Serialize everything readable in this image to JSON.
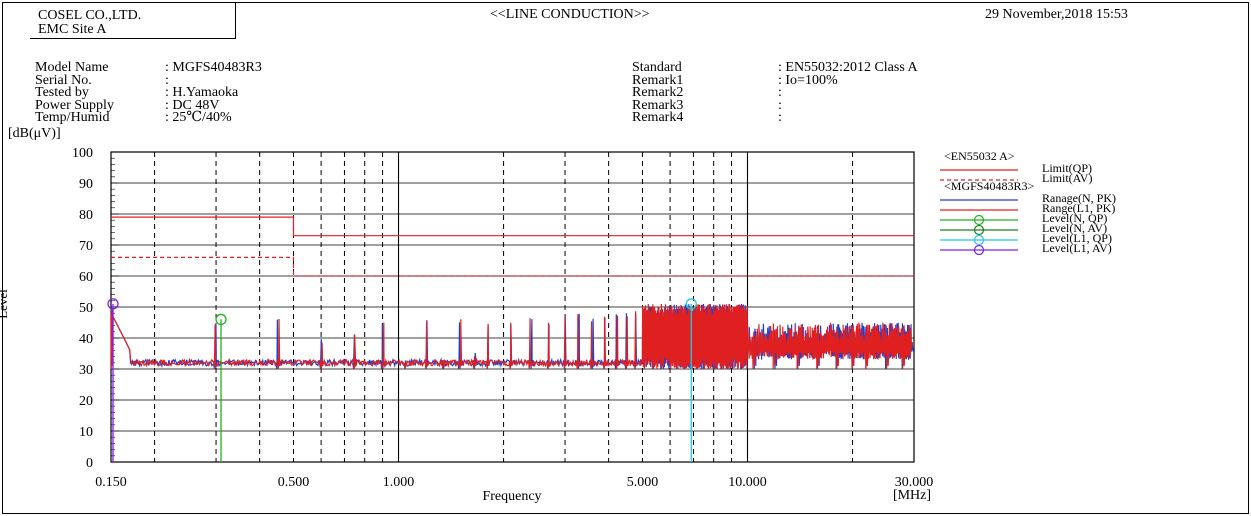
{
  "header": {
    "company_line1": "COSEL CO.,LTD.",
    "company_line2": "EMC Site A",
    "title": "<<LINE CONDUCTION>>",
    "datetime": "29 November,2018 15:53"
  },
  "info_left": [
    {
      "label": "Model Name",
      "value": ": MGFS40483R3"
    },
    {
      "label": "Serial No.",
      "value": ":"
    },
    {
      "label": "Tested by",
      "value": ": H.Yamaoka"
    },
    {
      "label": "Power Supply",
      "value": ": DC 48V"
    },
    {
      "label": "Temp/Humid",
      "value": ": 25℃/40%"
    }
  ],
  "info_right": [
    {
      "label": "Standard",
      "value": ": EN55032:2012 Class A"
    },
    {
      "label": "Remark1",
      "value": ": Io=100%"
    },
    {
      "label": "Remark2",
      "value": ":"
    },
    {
      "label": "Remark3",
      "value": ":"
    },
    {
      "label": "Remark4",
      "value": ":"
    }
  ],
  "chart_data": {
    "type": "line",
    "xscale": "log",
    "xlim": [
      0.15,
      30
    ],
    "ylim": [
      0,
      100
    ],
    "ylabel": "Level",
    "yunit": "[dB(μV)]",
    "xlabel": "Frequency",
    "xunit": "[MHz]",
    "xtick_labels": [
      "0.150",
      "0.500",
      "1.000",
      "5.000",
      "10.000",
      "30.000"
    ],
    "xtick_values": [
      0.15,
      0.5,
      1,
      5,
      10,
      30
    ],
    "yticks": [
      0,
      10,
      20,
      30,
      40,
      50,
      60,
      70,
      80,
      90,
      100
    ],
    "grid": true,
    "legend_position": "right",
    "legend_groups": [
      {
        "title": "<EN55032 A>",
        "entries": [
          {
            "name": "Limit(QP)",
            "color": "#e02020",
            "style": "solid",
            "marker": "none"
          },
          {
            "name": "Limit(AV)",
            "color": "#e02020",
            "style": "dashed",
            "marker": "none"
          }
        ]
      },
      {
        "title": "<MGFS40483R3>",
        "entries": [
          {
            "name": "Ranage(N, PK)",
            "color": "#1f3fd0",
            "style": "solid",
            "marker": "none"
          },
          {
            "name": "Range(L1, PK)",
            "color": "#e02020",
            "style": "solid",
            "marker": "none"
          },
          {
            "name": "Level(N, QP)",
            "color": "#20b020",
            "style": "solid",
            "marker": "circle"
          },
          {
            "name": "Level(N, AV)",
            "color": "#208020",
            "style": "solid",
            "marker": "circle"
          },
          {
            "name": "Level(L1, QP)",
            "color": "#20c8e0",
            "style": "solid",
            "marker": "circle"
          },
          {
            "name": "Level(L1, AV)",
            "color": "#8020e0",
            "style": "solid",
            "marker": "circle"
          }
        ]
      }
    ],
    "limits": {
      "qp": [
        [
          0.15,
          79
        ],
        [
          0.5,
          79
        ],
        [
          0.5,
          73
        ],
        [
          30,
          73
        ]
      ],
      "av": [
        [
          0.15,
          66
        ],
        [
          0.5,
          66
        ],
        [
          0.5,
          60
        ],
        [
          30,
          60
        ]
      ]
    },
    "peaks": [
      [
        0.15,
        51
      ],
      [
        0.3,
        46
      ],
      [
        0.45,
        47
      ],
      [
        0.6,
        40
      ],
      [
        0.75,
        42
      ],
      [
        0.9,
        46
      ],
      [
        1.05,
        33
      ],
      [
        1.2,
        46
      ],
      [
        1.35,
        33
      ],
      [
        1.5,
        47
      ],
      [
        1.65,
        36
      ],
      [
        1.8,
        46
      ],
      [
        2.1,
        46
      ],
      [
        2.4,
        47
      ],
      [
        2.7,
        46
      ],
      [
        3.0,
        48
      ],
      [
        3.3,
        48
      ],
      [
        3.6,
        47
      ],
      [
        3.9,
        47
      ],
      [
        4.2,
        48
      ],
      [
        4.5,
        48
      ],
      [
        4.8,
        49
      ],
      [
        5.1,
        49
      ],
      [
        5.4,
        50
      ],
      [
        5.7,
        50
      ],
      [
        6.0,
        50
      ],
      [
        6.3,
        50
      ],
      [
        6.6,
        51
      ],
      [
        6.9,
        50
      ],
      [
        7.2,
        51
      ],
      [
        7.5,
        51
      ],
      [
        7.8,
        49
      ],
      [
        8.1,
        48
      ],
      [
        8.4,
        48
      ],
      [
        8.7,
        47
      ],
      [
        9.0,
        47
      ],
      [
        9.6,
        46
      ],
      [
        10.5,
        44
      ],
      [
        12.0,
        44
      ],
      [
        14.0,
        43
      ],
      [
        16.0,
        44
      ],
      [
        18.0,
        44
      ],
      [
        20.0,
        45
      ],
      [
        22.0,
        45
      ],
      [
        25.0,
        42
      ],
      [
        28.0,
        40
      ]
    ],
    "markers": [
      {
        "series": "Level(L1, AV)",
        "x": 0.152,
        "y": 51
      },
      {
        "series": "Level(N, QP)",
        "x": 0.31,
        "y": 46
      },
      {
        "series": "Level(L1, QP)",
        "x": 6.9,
        "y": 51
      }
    ]
  }
}
